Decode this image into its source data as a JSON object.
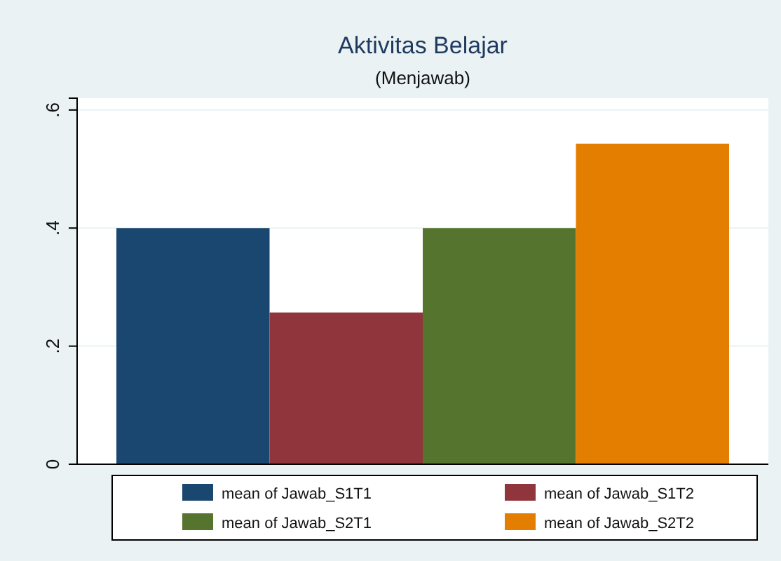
{
  "chart_data": {
    "type": "bar",
    "title": "Aktivitas Belajar",
    "subtitle": "(Menjawab)",
    "categories": [
      null
    ],
    "series": [
      {
        "name": "mean of Jawab_S1T1",
        "color": "#1a476f",
        "values": [
          0.4
        ]
      },
      {
        "name": "mean of Jawab_S1T2",
        "color": "#90353b",
        "values": [
          0.257
        ]
      },
      {
        "name": "mean of Jawab_S2T1",
        "color": "#55752f",
        "values": [
          0.4
        ]
      },
      {
        "name": "mean of Jawab_S2T2",
        "color": "#e37e00",
        "values": [
          0.543
        ]
      }
    ],
    "ylim": [
      0,
      0.62
    ],
    "yticks": [
      {
        "value": 0,
        "label": "0"
      },
      {
        "value": 0.2,
        "label": ".2"
      },
      {
        "value": 0.4,
        "label": ".4"
      },
      {
        "value": 0.6,
        "label": ".6"
      }
    ],
    "grid": "y",
    "legend": "bottom"
  }
}
